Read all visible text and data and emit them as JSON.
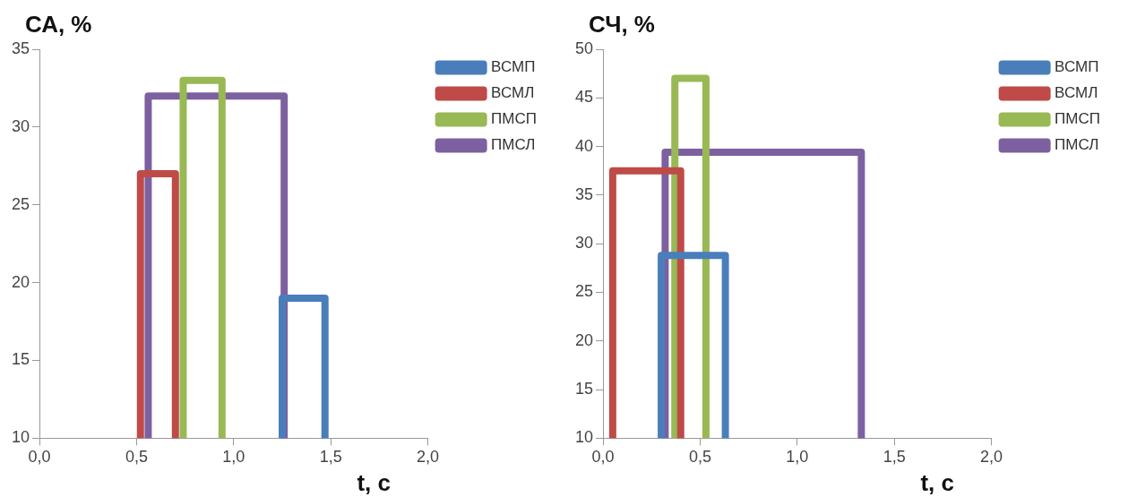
{
  "chart_data": [
    {
      "type": "line",
      "ylabel": "СА, %",
      "xlabel": "t, с",
      "legend": "top right",
      "marker": "none",
      "line_style": "solid",
      "grid": false,
      "xlim": [
        0,
        2
      ],
      "xticks": [
        {
          "value": 0,
          "label": "0,0"
        },
        {
          "value": 0.5,
          "label": "0,5"
        },
        {
          "value": 1,
          "label": "1,0"
        },
        {
          "value": 1.5,
          "label": "1,5"
        },
        {
          "value": 2,
          "label": "2,0"
        }
      ],
      "ylim": [
        10,
        35
      ],
      "yticks": [
        10,
        15,
        20,
        25,
        30,
        35
      ],
      "series": [
        {
          "name": "ВСМП",
          "color": "#4a7ebb",
          "x": [
            1.25,
            1.25,
            1.47,
            1.47
          ],
          "values": [
            10,
            19,
            19,
            10
          ]
        },
        {
          "name": "ВСМЛ",
          "color": "#be4b48",
          "x": [
            0.52,
            0.52,
            0.7,
            0.7
          ],
          "values": [
            10,
            27,
            27,
            10
          ]
        },
        {
          "name": "ПМСП",
          "color": "#98b954",
          "x": [
            0.74,
            0.74,
            0.94,
            0.94
          ],
          "values": [
            10,
            33,
            33,
            10
          ]
        },
        {
          "name": "ПМСЛ",
          "color": "#7d60a0",
          "x": [
            0.56,
            0.56,
            1.26,
            1.26
          ],
          "values": [
            10,
            32,
            32,
            10
          ]
        }
      ]
    },
    {
      "type": "line",
      "ylabel": "СЧ, %",
      "xlabel": "t, с",
      "legend": "top right",
      "marker": "none",
      "line_style": "solid",
      "grid": false,
      "xlim": [
        0,
        2
      ],
      "xticks": [
        {
          "value": 0,
          "label": "0,0"
        },
        {
          "value": 0.5,
          "label": "0,5"
        },
        {
          "value": 1,
          "label": "1,0"
        },
        {
          "value": 1.5,
          "label": "1,5"
        },
        {
          "value": 2,
          "label": "2,0"
        }
      ],
      "ylim": [
        10,
        50
      ],
      "yticks": [
        10,
        15,
        20,
        25,
        30,
        35,
        40,
        45,
        50
      ],
      "series": [
        {
          "name": "ВСМП",
          "color": "#4a7ebb",
          "x": [
            0.3,
            0.3,
            0.63,
            0.63
          ],
          "values": [
            10,
            28.8,
            28.8,
            10
          ]
        },
        {
          "name": "ВСМЛ",
          "color": "#be4b48",
          "x": [
            0.05,
            0.05,
            0.4,
            0.4
          ],
          "values": [
            10,
            37.5,
            37.5,
            10
          ]
        },
        {
          "name": "ПМСП",
          "color": "#98b954",
          "x": [
            0.37,
            0.37,
            0.53,
            0.53
          ],
          "values": [
            10,
            47,
            47,
            10
          ]
        },
        {
          "name": "ПМСЛ",
          "color": "#7d60a0",
          "x": [
            0.32,
            0.32,
            1.33,
            1.33
          ],
          "values": [
            10,
            39.4,
            39.4,
            10
          ]
        }
      ]
    }
  ]
}
